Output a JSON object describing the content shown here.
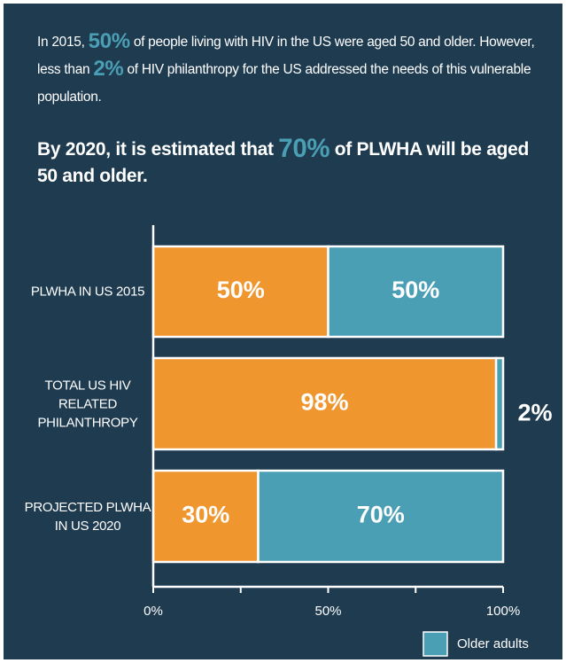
{
  "chart_data": {
    "type": "stacked_barh",
    "intro": [
      "In 2015, ",
      "50%",
      " of people living with HIV in the US were aged 50 and older. However, less than ",
      "2%",
      " of HIV philanthropy for the US addressed the needs of this vulnerable population."
    ],
    "headline": [
      "By 2020, it is estimated that ",
      "70%",
      " of PLWHA will be aged 50 and older."
    ],
    "categories": [
      "PLWHA IN US 2015",
      "TOTAL US HIV RELATED PHILANTHROPY",
      "PROJECTED PLWHA IN US 2020"
    ],
    "series": [
      {
        "color": "#ef962f",
        "values": [
          50,
          98,
          30
        ],
        "value_labels": [
          "50%",
          "98%",
          "30%"
        ]
      },
      {
        "name": "Older adults",
        "color": "#4b9fb5",
        "values": [
          50,
          2,
          70
        ],
        "value_labels": [
          "50%",
          "2%",
          "70%"
        ]
      }
    ],
    "xlim": [
      0,
      100
    ],
    "xticks": [
      {
        "value": 0,
        "label": "0%"
      },
      {
        "value": 50,
        "label": "50%"
      },
      {
        "value": 100,
        "label": "100%"
      }
    ],
    "minor_xticks": [
      25,
      75
    ],
    "legend": "bottom-right"
  }
}
